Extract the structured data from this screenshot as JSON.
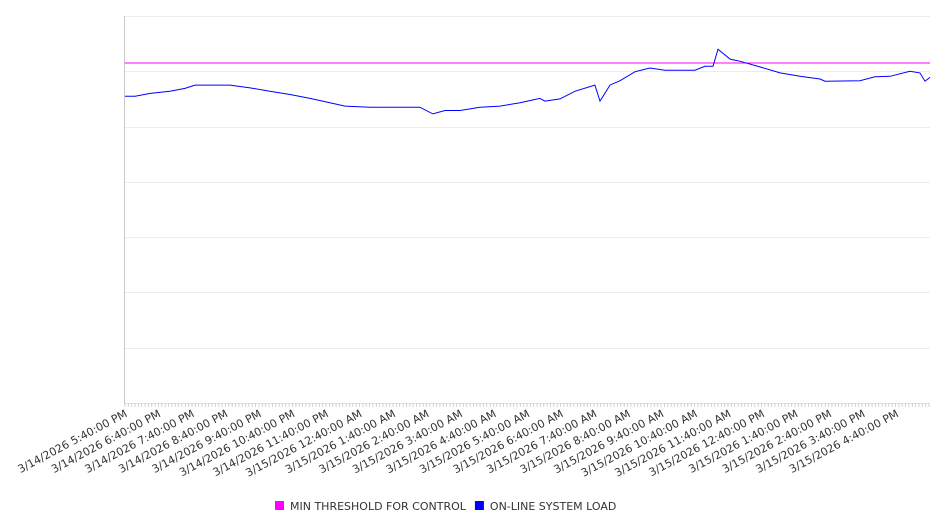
{
  "chart_data": {
    "type": "line",
    "title": "",
    "xlabel": "",
    "ylabel": "",
    "x_unit": "hours since 3/14/2026 5:40:00 PM",
    "xlim": [
      0,
      24
    ],
    "ylim": [
      0,
      7
    ],
    "grid": true,
    "legend_placement": "bottom",
    "x_tick_labels": [
      "3/14/2026 5:40:00 PM",
      "3/14/2026 6:40:00 PM",
      "3/14/2026 7:40:00 PM",
      "3/14/2026 8:40:00 PM",
      "3/14/2026 9:40:00 PM",
      "3/14/2026 10:40:00 PM",
      "3/14/2026 11:40:00 PM",
      "3/15/2026 12:40:00 AM",
      "3/15/2026 1:40:00 AM",
      "3/15/2026 2:40:00 AM",
      "3/15/2026 3:40:00 AM",
      "3/15/2026 4:40:00 AM",
      "3/15/2026 5:40:00 AM",
      "3/15/2026 6:40:00 AM",
      "3/15/2026 7:40:00 AM",
      "3/15/2026 8:40:00 AM",
      "3/15/2026 9:40:00 AM",
      "3/15/2026 10:40:00 AM",
      "3/15/2026 11:40:00 AM",
      "3/15/2026 12:40:00 PM",
      "3/15/2026 1:40:00 PM",
      "3/15/2026 2:40:00 PM",
      "3/15/2026 3:40:00 PM",
      "3/15/2026 4:40:00 PM"
    ],
    "series": [
      {
        "name": "MIN THRESHOLD FOR CONTROL",
        "color": "#ff00ff",
        "x": [
          0,
          24
        ],
        "y": [
          6.15,
          6.15
        ]
      },
      {
        "name": "ON-LINE SYSTEM LOAD",
        "color": "#0000ff",
        "x": [
          0,
          0.3,
          0.75,
          1.34,
          1.79,
          2.09,
          2.53,
          3.13,
          3.73,
          4.32,
          4.92,
          5.52,
          6.11,
          6.56,
          7.3,
          8.2,
          8.79,
          9.18,
          9.54,
          9.99,
          10.58,
          11.18,
          11.78,
          12.37,
          12.52,
          12.97,
          13.42,
          14.01,
          14.16,
          14.46,
          14.76,
          15.2,
          15.65,
          16.1,
          16.55,
          16.99,
          17.29,
          17.53,
          17.68,
          18.04,
          18.34,
          18.93,
          19.53,
          20.12,
          20.72,
          20.87,
          21.91,
          22.36,
          22.81,
          23.4,
          23.7,
          23.85,
          24.0
        ],
        "y": [
          5.55,
          5.55,
          5.6,
          5.64,
          5.69,
          5.75,
          5.75,
          5.75,
          5.7,
          5.64,
          5.58,
          5.51,
          5.43,
          5.37,
          5.35,
          5.35,
          5.35,
          5.23,
          5.29,
          5.29,
          5.35,
          5.37,
          5.43,
          5.51,
          5.46,
          5.5,
          5.64,
          5.75,
          5.46,
          5.75,
          5.83,
          5.99,
          6.06,
          6.02,
          6.02,
          6.02,
          6.09,
          6.09,
          6.4,
          6.22,
          6.18,
          6.08,
          5.97,
          5.91,
          5.86,
          5.82,
          5.83,
          5.9,
          5.91,
          6.0,
          5.97,
          5.82,
          5.89
        ]
      }
    ]
  }
}
